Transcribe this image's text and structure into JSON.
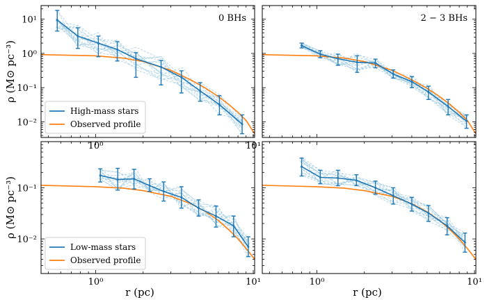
{
  "figure": {
    "ylabel": "ρ (M⊙ pc⁻³)",
    "xlabel": "r (pc)"
  },
  "colors": {
    "mean": "#1f77b4",
    "observed": "#ff7f0e",
    "sims": "#9ecae1"
  },
  "chart_data": [
    {
      "type": "line",
      "panel": "top-left",
      "annotation": "0 BHs",
      "x_scale": "log",
      "y_scale": "log",
      "xlim": [
        0.45,
        10.2
      ],
      "ylim": [
        0.0035,
        25
      ],
      "x_ticks": [
        {
          "v": 1,
          "label": "10⁰"
        },
        {
          "v": 10,
          "label": "10¹"
        }
      ],
      "y_ticks": [
        {
          "v": 0.01,
          "label": "10⁻²"
        },
        {
          "v": 0.1,
          "label": "10⁻¹"
        },
        {
          "v": 1,
          "label": "10⁰"
        },
        {
          "v": 10,
          "label": "10¹"
        }
      ],
      "legend": [
        "High-mass stars",
        "Observed profile"
      ],
      "legend_position": "lower-left",
      "series": [
        {
          "name": "High-mass stars",
          "x": [
            0.57,
            0.77,
            1.04,
            1.37,
            1.8,
            2.6,
            3.5,
            4.6,
            6.1,
            8.5
          ],
          "y": [
            9.5,
            3.2,
            2.0,
            1.3,
            0.7,
            0.4,
            0.2,
            0.08,
            0.032,
            0.0085
          ],
          "err_low": [
            4.5,
            1.4,
            0.8,
            0.6,
            0.2,
            0.12,
            0.07,
            0.04,
            0.016,
            0.0045
          ],
          "err_high": [
            18,
            5.6,
            3.2,
            2.2,
            1.05,
            0.62,
            0.31,
            0.14,
            0.058,
            0.016
          ]
        },
        {
          "name": "Observed profile",
          "x": [
            0.45,
            1,
            1.5,
            2,
            3,
            4,
            5,
            6,
            7,
            8,
            9,
            10.2
          ],
          "y": [
            0.92,
            0.85,
            0.73,
            0.58,
            0.32,
            0.17,
            0.095,
            0.055,
            0.032,
            0.019,
            0.011,
            0.0045
          ]
        }
      ]
    },
    {
      "type": "line",
      "panel": "top-right",
      "annotation": "2 − 3 BHs",
      "x_scale": "log",
      "y_scale": "log",
      "xlim": [
        0.45,
        10.2
      ],
      "ylim": [
        0.0035,
        25
      ],
      "x_ticks": [
        {
          "v": 1,
          "label": ""
        },
        {
          "v": 10,
          "label": ""
        }
      ],
      "y_ticks": [],
      "series": [
        {
          "name": "",
          "x": [
            0.8,
            1.05,
            1.36,
            1.8,
            2.35,
            3.05,
            4.0,
            5.1,
            6.8,
            8.9
          ],
          "y": [
            1.7,
            0.95,
            0.7,
            0.55,
            0.52,
            0.25,
            0.15,
            0.075,
            0.028,
            0.0105
          ],
          "err_low": [
            1.45,
            0.75,
            0.45,
            0.28,
            0.38,
            0.19,
            0.1,
            0.045,
            0.016,
            0.0065
          ],
          "err_high": [
            2.0,
            1.2,
            0.95,
            0.85,
            0.68,
            0.33,
            0.21,
            0.11,
            0.045,
            0.016
          ]
        },
        {
          "name": "",
          "x": [
            0.45,
            1,
            1.5,
            2,
            3,
            4,
            5,
            6,
            7,
            8,
            9,
            10.2
          ],
          "y": [
            0.92,
            0.85,
            0.73,
            0.58,
            0.32,
            0.17,
            0.095,
            0.055,
            0.032,
            0.019,
            0.011,
            0.0045
          ]
        }
      ]
    },
    {
      "type": "line",
      "panel": "bottom-left",
      "annotation": "",
      "x_scale": "log",
      "y_scale": "log",
      "xlim": [
        0.45,
        10.2
      ],
      "ylim": [
        0.0021,
        0.8
      ],
      "x_ticks": [
        {
          "v": 1,
          "label": "10⁰"
        },
        {
          "v": 10,
          "label": "10¹"
        }
      ],
      "y_ticks": [
        {
          "v": 0.01,
          "label": "10⁻²"
        },
        {
          "v": 0.1,
          "label": "10⁻¹"
        }
      ],
      "legend": [
        "Low-mass stars",
        "Observed profile"
      ],
      "legend_position": "lower-left",
      "series": [
        {
          "name": "Low-mass stars",
          "x": [
            1.07,
            1.38,
            1.75,
            2.2,
            2.7,
            3.5,
            4.5,
            5.8,
            7.5,
            9.3
          ],
          "y": [
            0.175,
            0.145,
            0.15,
            0.11,
            0.085,
            0.065,
            0.04,
            0.028,
            0.018,
            0.007
          ],
          "err_low": [
            0.13,
            0.09,
            0.095,
            0.085,
            0.055,
            0.04,
            0.028,
            0.017,
            0.011,
            0.0045
          ],
          "err_high": [
            0.235,
            0.24,
            0.23,
            0.15,
            0.13,
            0.105,
            0.058,
            0.044,
            0.028,
            0.011
          ]
        },
        {
          "name": "Observed profile",
          "x": [
            0.45,
            1,
            1.5,
            2,
            3,
            4,
            5,
            6,
            7,
            8,
            9,
            10.2
          ],
          "y": [
            0.112,
            0.105,
            0.098,
            0.088,
            0.068,
            0.049,
            0.034,
            0.023,
            0.015,
            0.01,
            0.0065,
            0.004
          ]
        }
      ]
    },
    {
      "type": "line",
      "panel": "bottom-right",
      "annotation": "",
      "x_scale": "log",
      "y_scale": "log",
      "xlim": [
        0.45,
        10.2
      ],
      "ylim": [
        0.0021,
        0.8
      ],
      "x_ticks": [
        {
          "v": 1,
          "label": "10⁰"
        },
        {
          "v": 10,
          "label": "10¹"
        }
      ],
      "y_ticks": [],
      "series": [
        {
          "name": "",
          "x": [
            0.8,
            1.05,
            1.36,
            1.78,
            2.35,
            3.05,
            4.0,
            5.1,
            6.7,
            8.7
          ],
          "y": [
            0.26,
            0.16,
            0.155,
            0.14,
            0.1,
            0.07,
            0.048,
            0.032,
            0.018,
            0.0085
          ],
          "err_low": [
            0.17,
            0.12,
            0.11,
            0.11,
            0.075,
            0.048,
            0.035,
            0.022,
            0.012,
            0.0055
          ],
          "err_high": [
            0.38,
            0.22,
            0.22,
            0.18,
            0.135,
            0.1,
            0.065,
            0.045,
            0.026,
            0.013
          ]
        },
        {
          "name": "",
          "x": [
            0.45,
            1,
            1.5,
            2,
            3,
            4,
            5,
            6,
            7,
            8,
            9,
            10.2
          ],
          "y": [
            0.112,
            0.105,
            0.098,
            0.088,
            0.068,
            0.049,
            0.034,
            0.023,
            0.015,
            0.01,
            0.0065,
            0.004
          ]
        }
      ]
    }
  ]
}
